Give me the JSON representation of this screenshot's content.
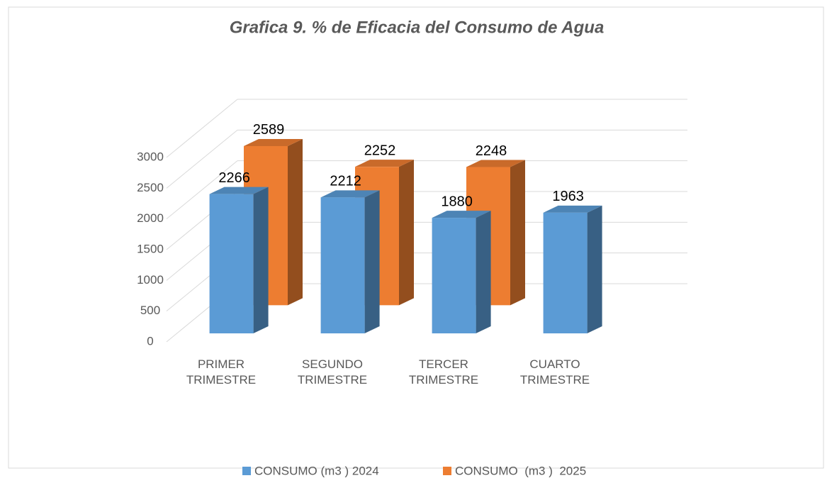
{
  "chart_data": {
    "type": "bar3d",
    "title": "Grafica 9. % de Eficacia del Consumo de  Agua",
    "categories": [
      "PRIMER TRIMESTRE",
      "SEGUNDO TRIMESTRE",
      "TERCER TRIMESTRE",
      "CUARTO TRIMESTRE"
    ],
    "series": [
      {
        "name": "CONSUMO (m3 ) 2024",
        "color": "#5b9bd5",
        "values": [
          2266,
          2212,
          1880,
          1963
        ]
      },
      {
        "name": "CONSUMO  (m3 )  2025",
        "color": "#ed7d31",
        "values": [
          2589,
          2252,
          2248,
          null
        ]
      }
    ],
    "ylim": [
      0,
      3000
    ],
    "yticks": [
      0,
      500,
      1000,
      1500,
      2000,
      2500,
      3000
    ],
    "grid": true,
    "legend": "bottom"
  }
}
